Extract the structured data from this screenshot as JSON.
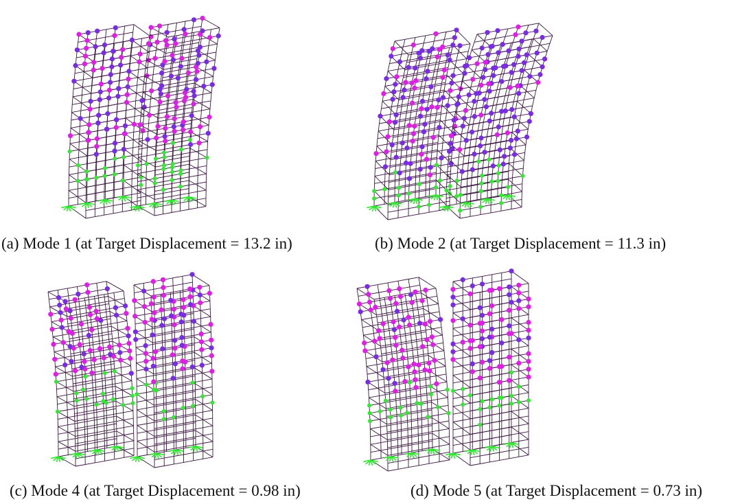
{
  "panels": [
    {
      "caption": "(a) Mode 1 (at Target Displacement = 13.2 in)"
    },
    {
      "caption": "(b) Mode 2 (at Target Displacement = 11.3 in)"
    },
    {
      "caption": "(c) Mode 4 (at Target Displacement = 0.98 in)"
    },
    {
      "caption": "(d) Mode 5 (at Target Displacement = 0.73 in)"
    }
  ]
}
